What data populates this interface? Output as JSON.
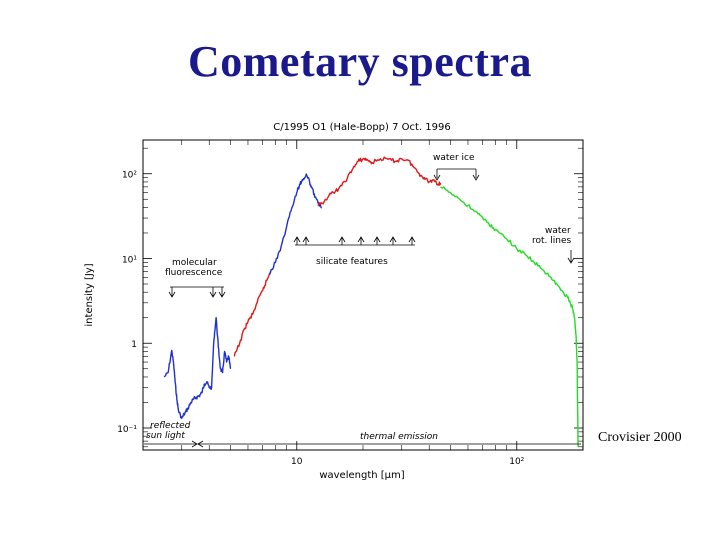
{
  "slide": {
    "title": "Cometary spectra",
    "credit": "Crovisier 2000"
  },
  "chart_data": {
    "type": "line",
    "title": "C/1995 O1 (Hale-Bopp)  7 Oct. 1996",
    "xlabel": "wavelength  [μm]",
    "ylabel": "intensity  [Jy]",
    "xscale": "log",
    "yscale": "log",
    "xlim": [
      2.0,
      200
    ],
    "ylim": [
      0.055,
      250
    ],
    "x_ticks": [
      {
        "value": 10,
        "label": "10"
      },
      {
        "value": 100,
        "label": "10²"
      }
    ],
    "y_ticks": [
      {
        "value": 0.1,
        "label": "10⁻¹"
      },
      {
        "value": 1,
        "label": "1"
      },
      {
        "value": 10,
        "label": "10¹"
      },
      {
        "value": 100,
        "label": "10²"
      }
    ],
    "series": [
      {
        "color": "#1f2fd0",
        "x": [
          2.5,
          2.6,
          2.7,
          2.75,
          2.8,
          2.85,
          2.9,
          3.0,
          3.1,
          3.2,
          3.3,
          3.4,
          3.5,
          3.6,
          3.7,
          3.8,
          3.9,
          4.0,
          4.1,
          4.2,
          4.3,
          4.4,
          4.5,
          4.6,
          4.7,
          4.8,
          4.9,
          5.0
        ],
        "y": [
          0.4,
          0.45,
          0.82,
          0.6,
          0.35,
          0.22,
          0.16,
          0.13,
          0.15,
          0.17,
          0.2,
          0.22,
          0.23,
          0.24,
          0.26,
          0.33,
          0.35,
          0.3,
          0.3,
          1.1,
          2.0,
          0.9,
          0.5,
          0.45,
          0.8,
          0.6,
          0.7,
          0.5
        ]
      },
      {
        "color": "#e01818",
        "x": [
          5.2,
          5.5,
          5.8,
          6.0,
          6.3,
          6.6,
          7.0,
          7.3,
          7.6
        ],
        "y": [
          0.7,
          1.0,
          1.5,
          1.8,
          2.2,
          3.0,
          4.2,
          5.5,
          7.0
        ]
      },
      {
        "color": "#1f2fd0",
        "x": [
          7.5,
          8.0,
          8.5,
          9.0,
          9.5,
          10.0,
          10.3,
          10.6,
          11.0,
          11.3,
          11.6,
          12.0,
          12.5,
          13.0
        ],
        "y": [
          6.5,
          9.0,
          14.0,
          24.0,
          40.0,
          60.0,
          75.0,
          85.0,
          95.0,
          90.0,
          70.0,
          58.0,
          45.0,
          40.0
        ]
      },
      {
        "color": "#e01818",
        "x": [
          12.5,
          13.0,
          14.0,
          15.0,
          16.0,
          17.0,
          18.0,
          19.0,
          20.0,
          21.0,
          22.0,
          24.0,
          26.0,
          28.0,
          30.0,
          32.0,
          34.0,
          36.0,
          38.0,
          40.0,
          42.0,
          44.0,
          45.0
        ],
        "y": [
          42.0,
          45.0,
          55.0,
          62.0,
          72.0,
          90.0,
          115.0,
          140.0,
          150.0,
          145.0,
          135.0,
          150.0,
          148.0,
          140.0,
          150.0,
          145.0,
          120.0,
          100.0,
          90.0,
          80.0,
          85.0,
          75.0,
          78.0
        ]
      },
      {
        "color": "#22dd22",
        "x": [
          45.0,
          50.0,
          55.0,
          60.0,
          65.0,
          70.0,
          75.0,
          80.0,
          90.0,
          100.0,
          110.0,
          120.0,
          130.0,
          140.0,
          150.0,
          160.0,
          170.0,
          175.0,
          180.0,
          183.0,
          186.0,
          188.0,
          190.0
        ],
        "y": [
          70.0,
          60.0,
          50.0,
          42.0,
          36.0,
          30.0,
          25.0,
          22.0,
          17.0,
          13.0,
          11.0,
          9.0,
          7.5,
          6.2,
          5.0,
          4.2,
          3.5,
          3.0,
          2.5,
          2.0,
          1.2,
          0.6,
          0.06
        ]
      }
    ],
    "annotations": [
      {
        "text": "water ice"
      },
      {
        "text": "water"
      },
      {
        "text": "rot. lines"
      },
      {
        "text": "molecular"
      },
      {
        "text": "fluorescence"
      },
      {
        "text": "silicate features"
      },
      {
        "text": "reflected"
      },
      {
        "text": "sun light"
      },
      {
        "text": "thermal emission"
      }
    ]
  }
}
